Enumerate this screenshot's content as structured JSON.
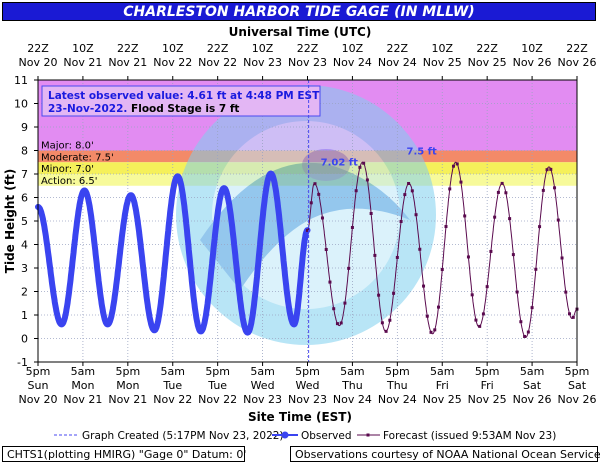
{
  "chart_data": {
    "type": "line",
    "title": "CHARLESTON HARBOR TIDE GAGE (IN MLLW)",
    "top_axis_label": "Universal Time (UTC)",
    "xlabel": "Site Time (EST)",
    "ylabel": "Tide Height (ft)",
    "ylim": [
      -1,
      11
    ],
    "yticks": [
      -1,
      0,
      1,
      2,
      3,
      4,
      5,
      6,
      7,
      8,
      9,
      10,
      11
    ],
    "grid": true,
    "top_ticks": [
      [
        "22Z",
        "Nov 20"
      ],
      [
        "10Z",
        "Nov 21"
      ],
      [
        "22Z",
        "Nov 21"
      ],
      [
        "10Z",
        "Nov 22"
      ],
      [
        "22Z",
        "Nov 22"
      ],
      [
        "10Z",
        "Nov 23"
      ],
      [
        "22Z",
        "Nov 23"
      ],
      [
        "10Z",
        "Nov 24"
      ],
      [
        "22Z",
        "Nov 24"
      ],
      [
        "10Z",
        "Nov 25"
      ],
      [
        "22Z",
        "Nov 25"
      ],
      [
        "10Z",
        "Nov 26"
      ],
      [
        "22Z",
        "Nov 26"
      ]
    ],
    "bottom_ticks": [
      [
        "5pm",
        "Sun",
        "Nov 20"
      ],
      [
        "5am",
        "Mon",
        "Nov 21"
      ],
      [
        "5pm",
        "Mon",
        "Nov 21"
      ],
      [
        "5am",
        "Tue",
        "Nov 22"
      ],
      [
        "5pm",
        "Tue",
        "Nov 22"
      ],
      [
        "5am",
        "Wed",
        "Nov 23"
      ],
      [
        "5pm",
        "Wed",
        "Nov 23"
      ],
      [
        "5am",
        "Thu",
        "Nov 24"
      ],
      [
        "5pm",
        "Thu",
        "Nov 24"
      ],
      [
        "5am",
        "Fri",
        "Nov 25"
      ],
      [
        "5pm",
        "Fri",
        "Nov 25"
      ],
      [
        "5am",
        "Sat",
        "Nov 26"
      ],
      [
        "5pm",
        "Sat",
        "Nov 26"
      ]
    ],
    "flood_categories": [
      {
        "name": "Major",
        "label": "Major: 8.0'",
        "from": 8.0,
        "to": 11,
        "color": "#e28cf2"
      },
      {
        "name": "Moderate",
        "label": "Moderate: 7.5'",
        "from": 7.5,
        "to": 8.0,
        "color": "#f38a68"
      },
      {
        "name": "Minor",
        "label": "Minor: 7.0'",
        "from": 7.0,
        "to": 7.5,
        "color": "#f5f05a"
      },
      {
        "name": "Action",
        "label": "Action: 6.5'",
        "from": 6.5,
        "to": 7.0,
        "color": "#f7fa9a"
      }
    ],
    "info_box": [
      "Latest observed value: 4.61 ft at 4:48 PM EST",
      "23-Nov-2022.  Flood Stage is 7 ft"
    ],
    "peak_labels": [
      {
        "text": "7.02 ft",
        "hours": 80.5,
        "y": 7.02
      },
      {
        "text": "7.5 ft",
        "hours": 102.5,
        "y": 7.5
      }
    ],
    "hours_per_tick": 12,
    "graph_created_hours": 72.3,
    "observed": {
      "name": "Observed",
      "color": "#3a44f0",
      "extrema": [
        [
          0,
          5.6
        ],
        [
          6.3,
          0.6
        ],
        [
          12.4,
          6.3
        ],
        [
          18.6,
          0.6
        ],
        [
          24.8,
          6.1
        ],
        [
          31.1,
          0.35
        ],
        [
          37.3,
          6.9
        ],
        [
          43.5,
          0.3
        ],
        [
          49.7,
          6.4
        ],
        [
          56.0,
          0.25
        ],
        [
          62.2,
          7.02
        ],
        [
          68.4,
          0.6
        ],
        [
          72.0,
          4.61
        ]
      ]
    },
    "forecast": {
      "name": "Forecast (issued 9:53AM Nov 23)",
      "color": "#5a0a4e",
      "extrema": [
        [
          72,
          4.6
        ],
        [
          73.8,
          6.6
        ],
        [
          80.5,
          0.55
        ],
        [
          86.7,
          7.5
        ],
        [
          92.9,
          0.3
        ],
        [
          99.1,
          6.6
        ],
        [
          105.4,
          0.2
        ],
        [
          111.6,
          7.5
        ],
        [
          117.8,
          0.5
        ],
        [
          124.0,
          6.6
        ],
        [
          130.3,
          0.05
        ],
        [
          136.5,
          7.3
        ],
        [
          142.7,
          0.85
        ],
        [
          144,
          1.25
        ]
      ]
    }
  },
  "legend": {
    "graph_created": "Graph Created (5:17PM Nov 23, 2022)",
    "observed": "Observed",
    "forecast": "Forecast (issued 9:53AM Nov 23)"
  },
  "footer": {
    "left": "CHTS1(plotting HMIRG) \"Gage 0\" Datum: 0'",
    "right": "Observations courtesy of NOAA National Ocean Service"
  }
}
